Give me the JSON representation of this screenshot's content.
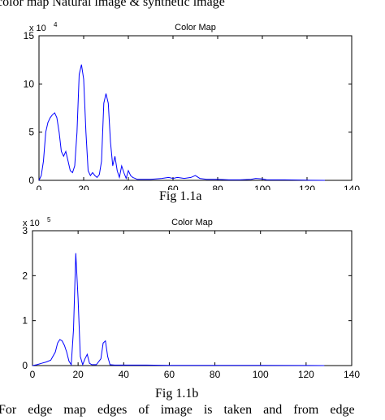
{
  "header_text": "color map   Natural image & synthetic image",
  "figures": [
    {
      "caption": "Fig 1.1a"
    },
    {
      "caption": "Fig 1.1b"
    }
  ],
  "footer_text": "For edge map edges of image is taken and from edge",
  "chart_data": [
    {
      "type": "line",
      "title": "Color Map",
      "exponent_label": "x 10",
      "exponent_power": "4",
      "xlim": [
        0,
        140
      ],
      "ylim": [
        0,
        15
      ],
      "x_ticks": [
        "0",
        "20",
        "40",
        "60",
        "80",
        "100",
        "120",
        "140"
      ],
      "y_ticks": [
        "0",
        "5",
        "10",
        "15"
      ],
      "grid": false,
      "line_color": "#0000ff",
      "series": [
        {
          "x": [
            0,
            1,
            2,
            3,
            4,
            5,
            6,
            7,
            8,
            9,
            10,
            11,
            12,
            13,
            14,
            15,
            16,
            17,
            18,
            19,
            20,
            21,
            22,
            23,
            24,
            25,
            26,
            27,
            28,
            29,
            30,
            31,
            32,
            33,
            34,
            35,
            36,
            37,
            38,
            39,
            40,
            41,
            42,
            43,
            44,
            45,
            46,
            50,
            55,
            58,
            60,
            62,
            65,
            68,
            70,
            72,
            75,
            80,
            85,
            90,
            95,
            97,
            100,
            102,
            105,
            110,
            120,
            128
          ],
          "y": [
            0,
            0.5,
            2,
            5,
            6,
            6.5,
            6.8,
            7,
            6.5,
            5,
            3,
            2.5,
            3,
            2,
            1,
            0.8,
            1.5,
            5,
            11,
            12,
            10.5,
            5,
            1,
            0.5,
            0.8,
            0.5,
            0.3,
            0.6,
            2,
            8,
            9,
            8,
            4,
            1.5,
            2.5,
            1,
            0.3,
            1.5,
            0.8,
            0.2,
            1,
            0.5,
            0.3,
            0.2,
            0.1,
            0.1,
            0.1,
            0.1,
            0.2,
            0.3,
            0.2,
            0.3,
            0.2,
            0.3,
            0.5,
            0.2,
            0.1,
            0.1,
            0.05,
            0.05,
            0.1,
            0.2,
            0.15,
            0.05,
            0.05,
            0.05,
            0.02,
            0
          ]
        }
      ]
    },
    {
      "type": "line",
      "title": "Color Map",
      "exponent_label": "x 10",
      "exponent_power": "5",
      "xlim": [
        0,
        140
      ],
      "ylim": [
        0,
        3
      ],
      "x_ticks": [
        "0",
        "20",
        "40",
        "60",
        "80",
        "100",
        "120",
        "140"
      ],
      "y_ticks": [
        "0",
        "1",
        "2",
        "3"
      ],
      "grid": false,
      "line_color": "#0000ff",
      "series": [
        {
          "x": [
            0,
            2,
            4,
            6,
            8,
            10,
            11,
            12,
            13,
            14,
            15,
            16,
            17,
            18,
            19,
            20,
            21,
            22,
            23,
            24,
            25,
            26,
            28,
            30,
            31,
            32,
            33,
            34,
            36,
            40,
            50,
            60,
            80,
            100,
            120,
            128
          ],
          "y": [
            0,
            0.02,
            0.05,
            0.08,
            0.12,
            0.3,
            0.5,
            0.58,
            0.55,
            0.45,
            0.3,
            0.1,
            0.02,
            0.8,
            2.5,
            1.5,
            0.2,
            0.02,
            0.15,
            0.25,
            0.05,
            0.02,
            0.02,
            0.15,
            0.5,
            0.55,
            0.2,
            0.02,
            0.01,
            0.01,
            0.01,
            0.005,
            0.005,
            0.003,
            0.002,
            0
          ]
        }
      ]
    }
  ]
}
